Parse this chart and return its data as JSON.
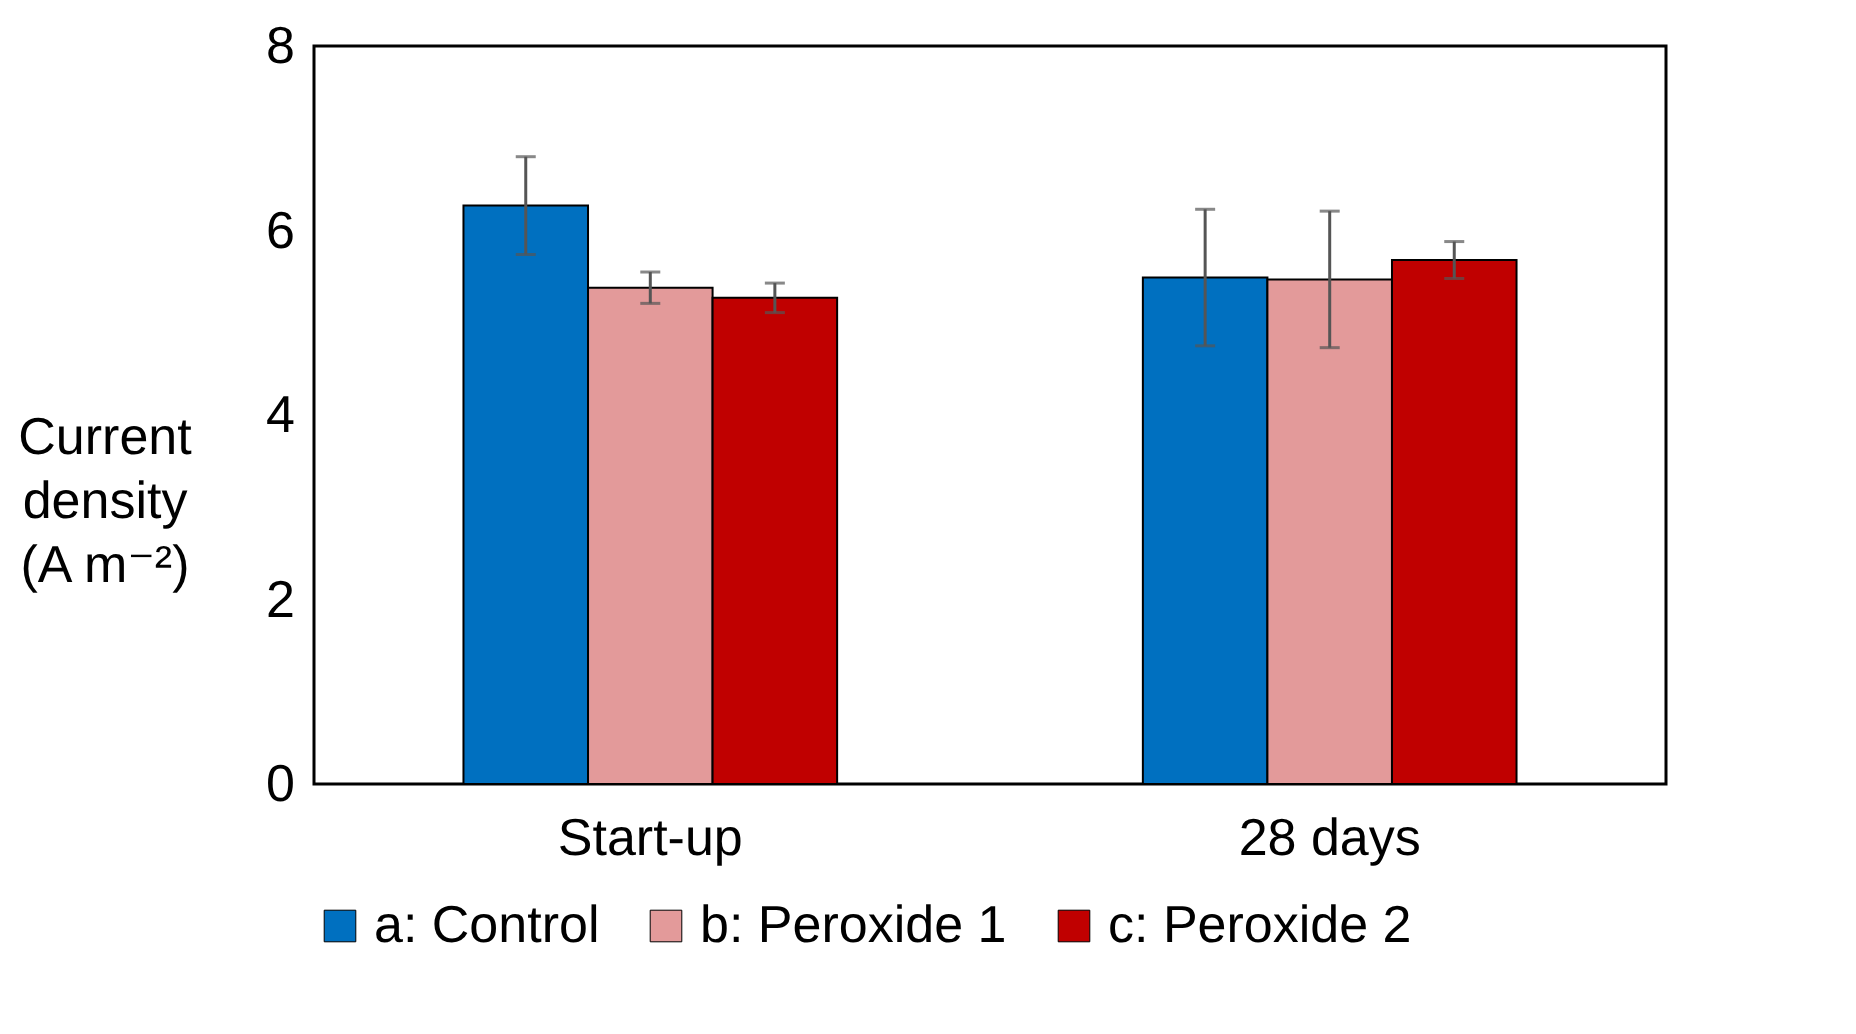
{
  "chart_data": {
    "type": "bar",
    "ylabel": "Current\ndensity\n(A m⁻²)",
    "categories": [
      "Start-up",
      "28 days"
    ],
    "series": [
      {
        "name": "a: Control",
        "color": "#0070c0",
        "values": [
          6.27,
          5.49
        ],
        "errors": [
          0.53,
          0.74
        ]
      },
      {
        "name": "b: Peroxide 1",
        "color": "#e39a9a",
        "values": [
          5.38,
          5.47
        ],
        "errors": [
          0.17,
          0.74
        ]
      },
      {
        "name": "c: Peroxide 2",
        "color": "#c00000",
        "values": [
          5.27,
          5.68
        ],
        "errors": [
          0.16,
          0.2
        ]
      }
    ],
    "ylim": [
      0,
      8
    ],
    "yticks": [
      0,
      2,
      4,
      6,
      8
    ],
    "grid": false,
    "legend": "bottom"
  }
}
